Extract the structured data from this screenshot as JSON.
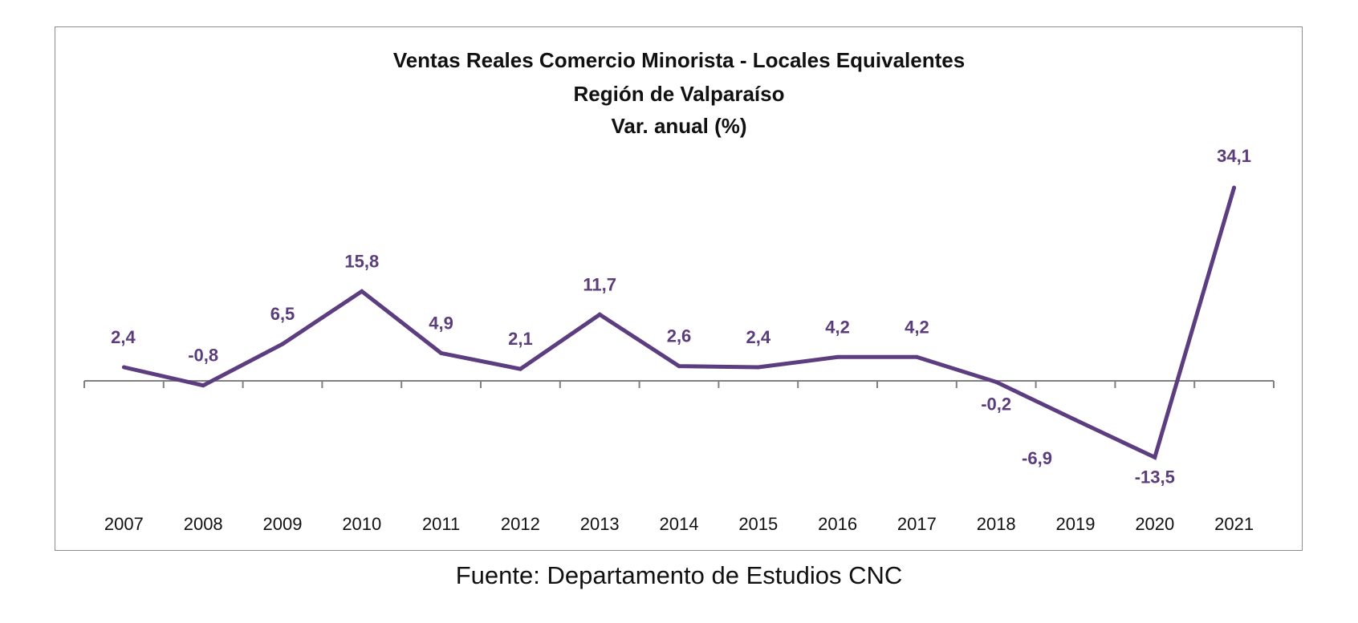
{
  "chart_data": {
    "type": "line",
    "title_lines": [
      "Ventas Reales Comercio Minorista - Locales Equivalentes",
      "Región de Valparaíso",
      "Var. anual (%)"
    ],
    "categories": [
      "2007",
      "2008",
      "2009",
      "2010",
      "2011",
      "2012",
      "2013",
      "2014",
      "2015",
      "2016",
      "2017",
      "2018",
      "2019",
      "2020",
      "2021"
    ],
    "series": [
      {
        "values": [
          2.4,
          -0.8,
          6.5,
          15.8,
          4.9,
          2.1,
          11.7,
          2.6,
          2.4,
          4.2,
          4.2,
          -0.2,
          -6.9,
          -13.5,
          34.1
        ],
        "labels": [
          "2,4",
          "-0,8",
          "6,5",
          "15,8",
          "4,9",
          "2,1",
          "11,7",
          "2,6",
          "2,4",
          "4,2",
          "4,2",
          "-0,2",
          "-6,9",
          "-13,5",
          "34,1"
        ],
        "color": "#5b3d80"
      }
    ],
    "ylim": [
      -20,
      40
    ],
    "grid": false,
    "legend": "none"
  },
  "footer": {
    "source": "Fuente: Departamento de Estudios CNC"
  },
  "colors": {
    "line": "#5b3d80",
    "label": "#5a3d7a",
    "axis": "#808080",
    "frame": "#8c8c8c"
  }
}
